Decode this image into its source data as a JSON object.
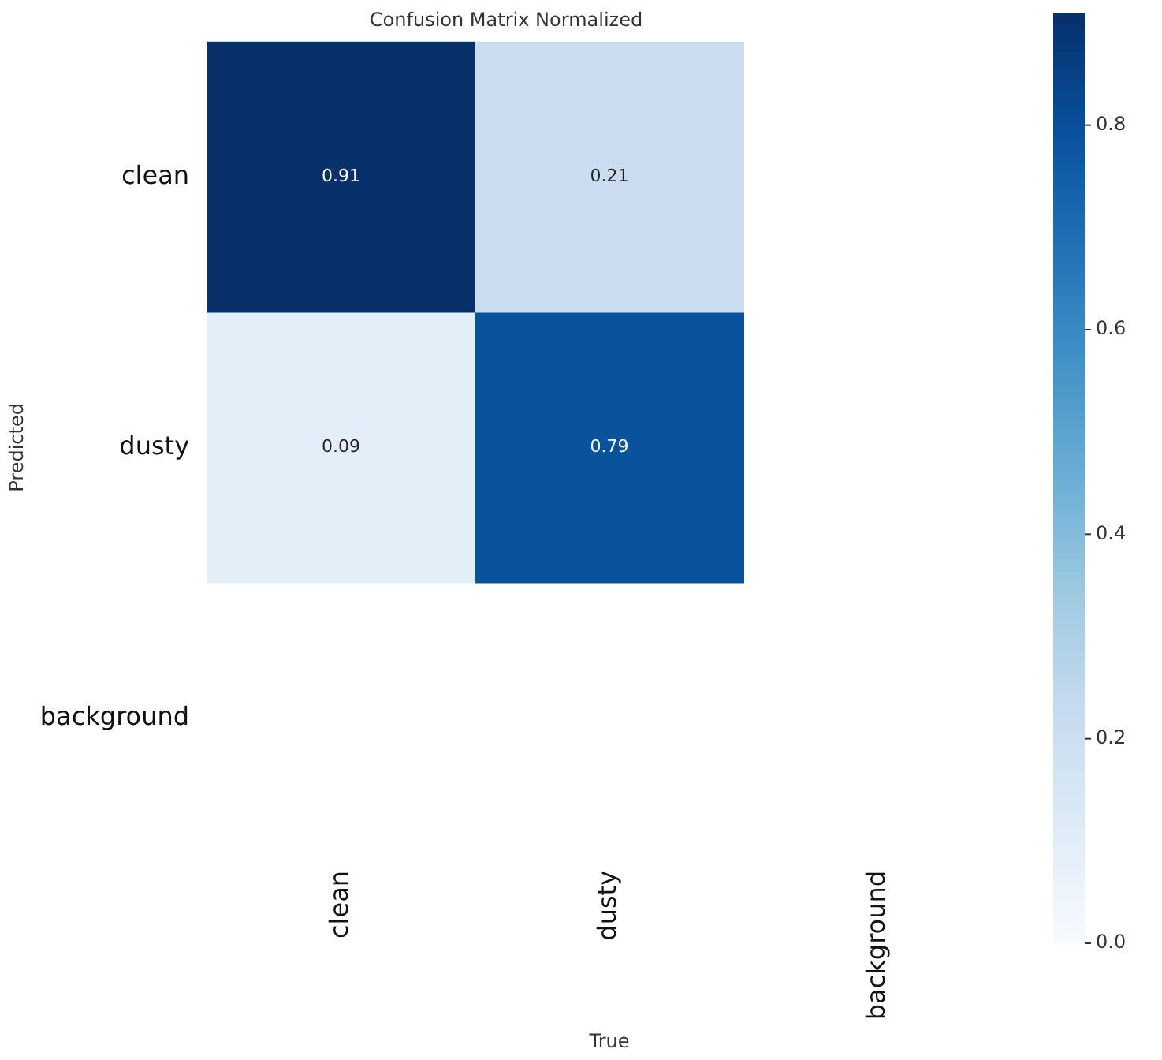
{
  "chart_data": {
    "type": "heatmap",
    "title": "Confusion Matrix Normalized",
    "xlabel": "True",
    "ylabel": "Predicted",
    "categories": [
      "clean",
      "dusty",
      "background"
    ],
    "y_categories": [
      "clean",
      "dusty",
      "background"
    ],
    "cells": [
      [
        0.91,
        0.21,
        null
      ],
      [
        0.09,
        0.79,
        null
      ],
      [
        null,
        null,
        null
      ]
    ],
    "clim": [
      0,
      0.91
    ],
    "cticks": [
      {
        "value": 0,
        "label": "0.0"
      },
      {
        "value": 0.2,
        "label": "0.2"
      },
      {
        "value": 0.4,
        "label": "0.4"
      },
      {
        "value": 0.6,
        "label": "0.6"
      },
      {
        "value": 0.8,
        "label": "0.8"
      }
    ],
    "data_labels": true
  }
}
